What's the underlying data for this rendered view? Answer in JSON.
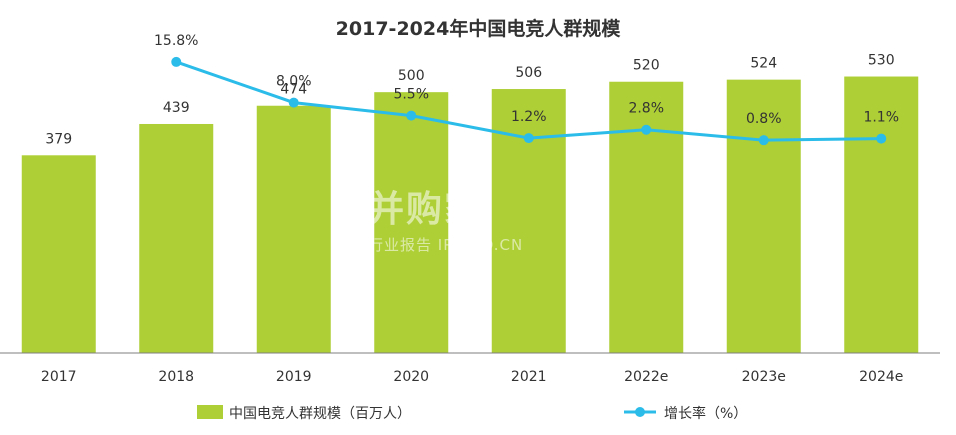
{
  "chart_data": {
    "type": "bar",
    "title": "2017-2024年中国电竞人群规模",
    "categories": [
      "2017",
      "2018",
      "2019",
      "2020",
      "2021",
      "2022e",
      "2023e",
      "2024e"
    ],
    "series": [
      {
        "name": "中国电竞人群规模（百万人）",
        "type": "bar",
        "values": [
          379,
          439,
          474,
          500,
          506,
          520,
          524,
          530
        ],
        "labels": [
          "379",
          "439",
          "474",
          "500",
          "506",
          "520",
          "524",
          "530"
        ]
      },
      {
        "name": "增长率（%）",
        "type": "line",
        "values": [
          null,
          15.8,
          8.0,
          5.5,
          1.2,
          2.8,
          0.8,
          1.1
        ],
        "labels": [
          "",
          "15.8%",
          "8.0%",
          "5.5%",
          "1.2%",
          "2.8%",
          "0.8%",
          "1.1%"
        ]
      }
    ],
    "ylim": [
      0,
      600
    ],
    "y2lim": [
      -40,
      20
    ],
    "legend": "bottom",
    "colors": {
      "bar": "#aecf36",
      "line": "#2bbce9",
      "text": "#333333",
      "axis": "#7f7f7f"
    }
  },
  "watermark": {
    "brand": "并购家",
    "sub": "行业报告 IPOIPO.CN"
  }
}
